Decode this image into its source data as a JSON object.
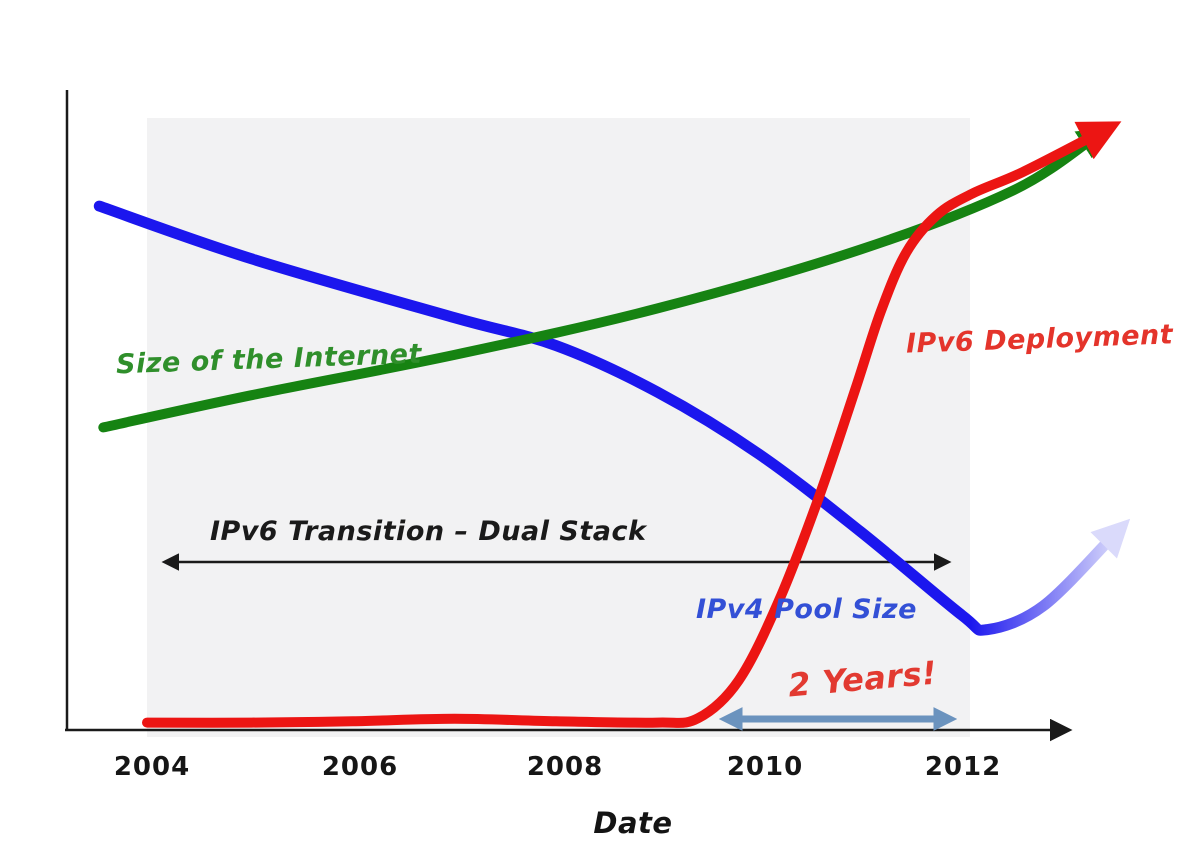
{
  "chart_data": {
    "type": "line",
    "title": "",
    "xlabel": "Date",
    "ylabel": "",
    "x_tick_labels": [
      "2004",
      "2006",
      "2008",
      "2010",
      "2012"
    ],
    "x_range": [
      2003.5,
      2013.5
    ],
    "ylim": [
      0,
      100
    ],
    "grid": false,
    "legend_position": "inline-labels",
    "background_band": {
      "x_from": 2004,
      "x_to": 2012.1,
      "color": "#f2f2f3"
    },
    "series": [
      {
        "name": "Size of the Internet",
        "color": "#168312",
        "style": "solid, thick, arrow at right end",
        "x": [
          2003.54,
          2005,
          2007,
          2009,
          2011,
          2012.5,
          2013.3
        ],
        "values": [
          48.8,
          54,
          60.5,
          68,
          77.5,
          87,
          95.5
        ]
      },
      {
        "name": "IPv4 Pool Size",
        "color": "#1b16ee",
        "style": "solid, thick, fades to pale arrow at right end",
        "fade_color": "#dadafb",
        "x": [
          2003.5,
          2005,
          2007,
          2008,
          2009,
          2010,
          2011,
          2012,
          2012.25,
          2012.8,
          2013.5
        ],
        "values": [
          84.5,
          76,
          66.5,
          62,
          54.5,
          44.5,
          32,
          18.5,
          16.2,
          20,
          31.5
        ]
      },
      {
        "name": "IPv6 Deployment",
        "color": "#ec1513",
        "style": "flat near zero then steep rise, arrow at right end",
        "x": [
          2003.97,
          2005,
          2006,
          2007,
          2008,
          2009,
          2009.4,
          2009.8,
          2010.2,
          2010.6,
          2010.95,
          2011.2,
          2011.45,
          2011.75,
          2012.1,
          2012.6,
          2013.35
        ],
        "values": [
          1.2,
          1.2,
          1.4,
          1.8,
          1.4,
          1.2,
          1.9,
          8,
          21,
          38,
          55,
          67.5,
          77,
          83,
          86.5,
          90,
          96.3
        ]
      }
    ],
    "annotations": [
      {
        "text": "IPv6 Transition – Dual Stack",
        "type": "double-headed-arrow-span",
        "color": "#1a1a1a",
        "x_from": 2004,
        "x_to": 2011.9,
        "y": 27
      },
      {
        "text": "2 Years!",
        "type": "double-headed-arrow-span",
        "color": "#6b93be",
        "text_color": "#e23a31",
        "x_from": 2009.5,
        "x_to": 2012.1,
        "y": 1.8
      }
    ]
  },
  "labels": {
    "internet": "Size of the Internet",
    "ipv6_deployment": "IPv6 Deployment",
    "ipv4_pool": "IPv4 Pool Size",
    "transition": "IPv6 Transition – Dual Stack",
    "two_years": "2 Years!",
    "date_axis": "Date"
  },
  "colors": {
    "axis": "#1a1a1a",
    "band": "#f2f2f3",
    "green_line": "#168312",
    "blue_line": "#1b16ee",
    "blue_fade": "#dadafb",
    "red_line": "#ec1513",
    "steel_arrow": "#6b93be",
    "green_text": "#2f8f2b",
    "red_text": "#e4342b",
    "blue_text": "#3350d6"
  }
}
